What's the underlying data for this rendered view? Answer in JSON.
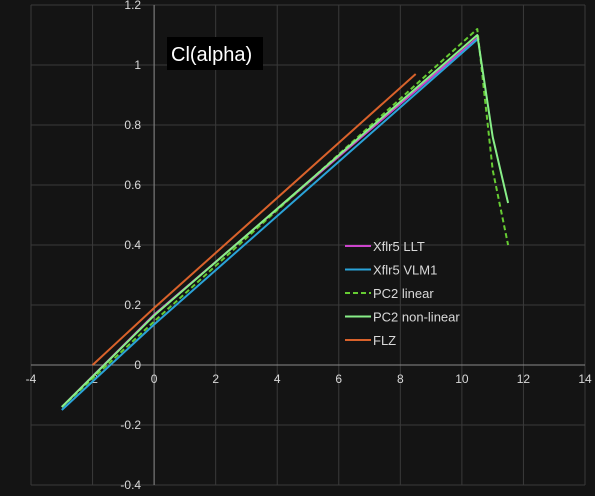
{
  "chart_data": {
    "type": "line",
    "title": "Cl(alpha)",
    "xlabel": "",
    "ylabel": "",
    "xlim": [
      -4,
      14
    ],
    "ylim": [
      -0.4,
      1.2
    ],
    "x_ticks": [
      -4,
      -2,
      0,
      2,
      4,
      6,
      8,
      10,
      12,
      14
    ],
    "y_ticks": [
      -0.4,
      -0.2,
      0,
      0.2,
      0.4,
      0.6,
      0.8,
      1,
      1.2
    ],
    "x_tick_labels": [
      "-4",
      "-2",
      "0",
      "2",
      "4",
      "6",
      "8",
      "10",
      "12",
      "14"
    ],
    "y_tick_labels": [
      "-0.4",
      "-0.2",
      "0",
      "0.2",
      "0.4",
      "0.6",
      "0.8",
      "1",
      "1.2"
    ],
    "grid": true,
    "legend_position": "center-right",
    "series": [
      {
        "name": "Xflr5 LLT",
        "color": "#cc44cc",
        "dash": "solid",
        "points": [
          [
            -3,
            -0.14
          ],
          [
            0,
            0.168
          ],
          [
            10.5,
            1.09
          ]
        ]
      },
      {
        "name": "Xflr5 VLM1",
        "color": "#2aa3d9",
        "dash": "solid",
        "points": [
          [
            -3,
            -0.15
          ],
          [
            0,
            0.135
          ],
          [
            10.5,
            1.085
          ]
        ]
      },
      {
        "name": "PC2 linear",
        "color": "#66cc33",
        "dash": "dashed",
        "points": [
          [
            -3,
            -0.14
          ],
          [
            0,
            0.145
          ],
          [
            10.5,
            1.12
          ],
          [
            11,
            0.65
          ],
          [
            11.5,
            0.4
          ]
        ]
      },
      {
        "name": "PC2 non-linear",
        "color": "#88ee88",
        "dash": "solid",
        "points": [
          [
            -3,
            -0.14
          ],
          [
            0,
            0.165
          ],
          [
            10.5,
            1.1
          ],
          [
            11,
            0.76
          ],
          [
            11.5,
            0.54
          ]
        ]
      },
      {
        "name": "FLZ",
        "color": "#d9622b",
        "dash": "solid",
        "points": [
          [
            -2,
            0
          ],
          [
            0,
            0.19
          ],
          [
            8.5,
            0.97
          ]
        ]
      }
    ]
  }
}
